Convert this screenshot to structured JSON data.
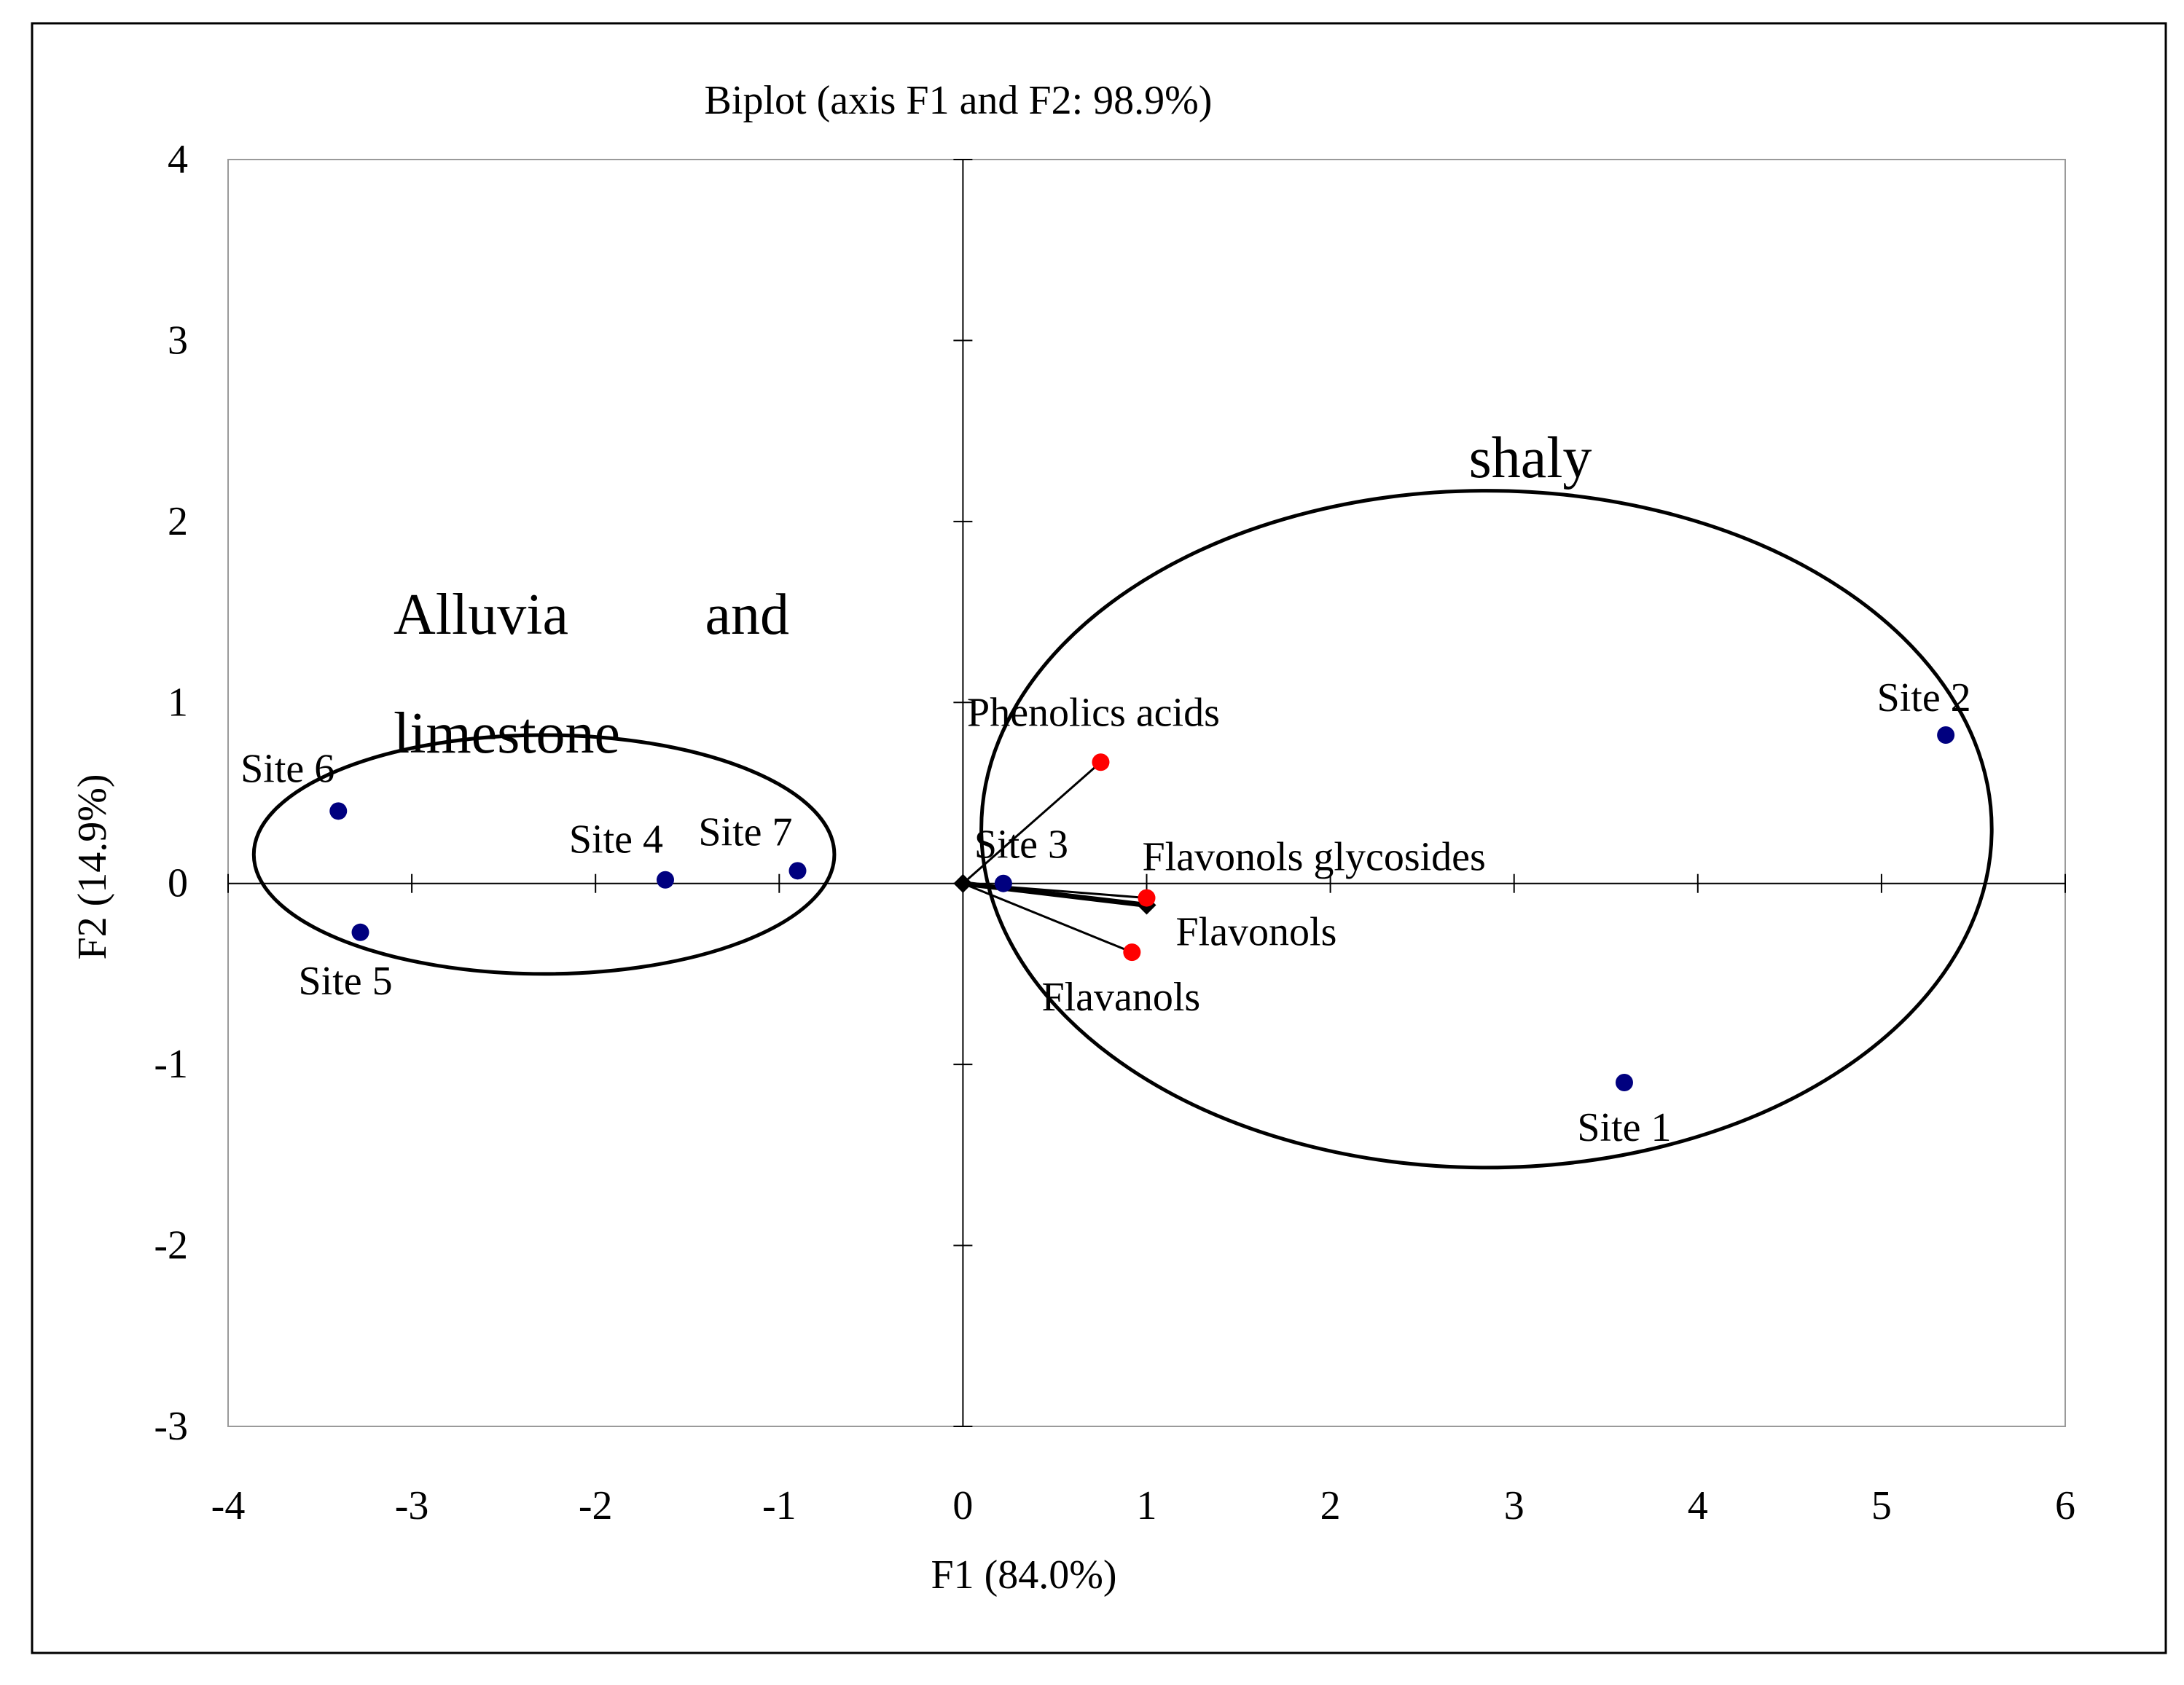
{
  "chart_data": {
    "type": "scatter",
    "title": "Biplot (axis F1 and F2: 98.9%)",
    "xlabel": "F1 (84.0%)",
    "ylabel": "F2 (14.9%)",
    "xlim": [
      -4,
      6
    ],
    "ylim": [
      -3,
      4
    ],
    "xticks": [
      "-4",
      "-3",
      "-2",
      "-1",
      "0",
      "1",
      "2",
      "3",
      "4",
      "5",
      "6"
    ],
    "yticks": [
      "4",
      "3",
      "2",
      "1",
      "0",
      "-1",
      "-2",
      "-3"
    ],
    "grid": false,
    "observations": {
      "color": "#00007f",
      "points": [
        {
          "label": "Site 1",
          "x": 3.6,
          "y": -1.1
        },
        {
          "label": "Site 2",
          "x": 5.35,
          "y": 0.82
        },
        {
          "label": "Site 3",
          "x": 0.22,
          "y": 0.0
        },
        {
          "label": "Site 4",
          "x": -1.62,
          "y": 0.02
        },
        {
          "label": "Site 5",
          "x": -3.28,
          "y": -0.27
        },
        {
          "label": "Site 6",
          "x": -3.4,
          "y": 0.4
        },
        {
          "label": "Site 7",
          "x": -0.9,
          "y": 0.07
        }
      ]
    },
    "variables": {
      "color": "#ff0000",
      "line_color": "#000000",
      "points": [
        {
          "label": "Phenolics acids",
          "x": 0.75,
          "y": 0.67
        },
        {
          "label": "Flavonols glycosides",
          "x": 1.0,
          "y": -0.08
        },
        {
          "label": "Flavonols",
          "x": 1.0,
          "y": -0.12
        },
        {
          "label": "Flavanols",
          "x": 0.92,
          "y": -0.38
        }
      ]
    },
    "groups": [
      {
        "label": "shaly",
        "cx": 2.85,
        "cy": 0.3,
        "rx": 2.75,
        "ry": 1.87
      },
      {
        "label": "Alluvia and limestone",
        "cx": -2.28,
        "cy": 0.16,
        "rx": 1.58,
        "ry": 0.66
      }
    ]
  }
}
